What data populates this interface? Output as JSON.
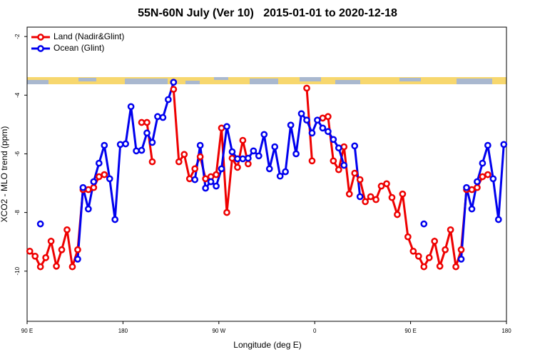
{
  "chart_data": {
    "type": "line",
    "title": "55N-60N July (Ver 10)   2015-01-01 to 2020-12-18",
    "xlabel": "Longitude (deg E)",
    "ylabel": "XCO2 - MLO trend (ppm)",
    "xlim": [
      90,
      540
    ],
    "ylim": [
      -11.71,
      -1.68
    ],
    "xticks": [
      {
        "value": 90,
        "label": "90 E"
      },
      {
        "value": 180,
        "label": "180"
      },
      {
        "value": 270,
        "label": "90 W"
      },
      {
        "value": 360,
        "label": "0"
      },
      {
        "value": 450,
        "label": "90 E"
      },
      {
        "value": 540,
        "label": "180"
      }
    ],
    "yticks": [
      -2,
      -4,
      -6,
      -8,
      -10
    ],
    "legend": "upper left",
    "x": [
      92.5,
      97.5,
      102.5,
      107.5,
      112.5,
      117.5,
      122.5,
      127.5,
      132.5,
      137.5,
      142.5,
      147.5,
      152.5,
      157.5,
      162.5,
      167.5,
      172.5,
      177.5,
      182.5,
      187.5,
      192.5,
      197.5,
      202.5,
      207.5,
      212.5,
      217.5,
      222.5,
      227.5,
      232.5,
      237.5,
      242.5,
      247.5,
      252.5,
      257.5,
      262.5,
      267.5,
      272.5,
      277.5,
      282.5,
      287.5,
      292.5,
      297.5,
      302.5,
      307.5,
      312.5,
      317.5,
      322.5,
      327.5,
      332.5,
      337.5,
      342.5,
      347.5,
      352.5,
      357.5,
      362.5,
      367.5,
      372.5,
      377.5,
      382.5,
      387.5,
      392.5,
      397.5,
      402.5,
      407.5,
      412.5,
      417.5,
      422.5,
      427.5,
      432.5,
      437.5,
      442.5,
      447.5,
      452.5,
      457.5,
      462.5,
      467.5,
      472.5,
      477.5,
      482.5,
      487.5,
      492.5,
      497.5,
      502.5,
      507.5,
      512.5,
      517.5,
      522.5,
      527.5,
      532.5,
      537.5
    ],
    "series": [
      {
        "name": "Land (Nadir&Glint)",
        "color": "#ee0000",
        "values": [
          -9.32,
          -9.49,
          -9.85,
          -9.54,
          -8.98,
          -9.83,
          -9.27,
          -8.59,
          -9.85,
          -9.27,
          -7.22,
          -7.22,
          -7.15,
          -6.78,
          -6.71,
          null,
          null,
          null,
          null,
          null,
          null,
          -4.93,
          -4.93,
          -6.27,
          null,
          null,
          null,
          -3.8,
          -6.27,
          -6.02,
          -6.85,
          -6.51,
          -6.1,
          -6.85,
          -6.78,
          -6.71,
          -5.12,
          -8.0,
          -6.15,
          -6.46,
          -5.54,
          -6.34,
          null,
          null,
          null,
          null,
          null,
          null,
          null,
          null,
          null,
          null,
          -3.76,
          -6.24,
          null,
          -4.78,
          -4.73,
          -6.24,
          -6.54,
          -5.76,
          -7.37,
          -6.66,
          -6.88,
          -7.63,
          -7.46,
          -7.56,
          -7.1,
          -7.02,
          -7.49,
          -8.07,
          -7.37,
          -8.83,
          -9.32,
          -9.49,
          -9.85,
          -9.54,
          -8.98,
          -9.83,
          -9.27,
          -8.59,
          -9.85,
          -9.27,
          -7.22,
          -7.22,
          -7.15,
          -6.78,
          -6.71,
          null,
          null,
          null
        ]
      },
      {
        "name": "Ocean (Glint)",
        "color": "#0000ee",
        "values": [
          null,
          null,
          -8.39,
          null,
          null,
          null,
          null,
          null,
          null,
          -9.59,
          -7.15,
          -7.88,
          -6.95,
          -6.32,
          -5.71,
          -6.85,
          -8.24,
          -5.68,
          -5.66,
          -4.39,
          -5.9,
          -5.88,
          -5.29,
          -5.61,
          -4.73,
          -4.76,
          -4.15,
          -3.56,
          null,
          null,
          null,
          -6.88,
          -5.71,
          -7.17,
          -6.95,
          -7.1,
          -6.51,
          -5.07,
          -5.93,
          -6.17,
          -6.17,
          -6.15,
          -5.9,
          -6.07,
          -5.34,
          -6.51,
          -5.76,
          -6.76,
          -6.61,
          -5.02,
          -6.0,
          -4.63,
          -4.85,
          -5.29,
          -4.85,
          -5.12,
          -5.24,
          -5.51,
          -5.8,
          -6.39,
          null,
          -5.73,
          -7.46,
          null,
          null,
          null,
          null,
          null,
          null,
          null,
          null,
          null,
          null,
          null,
          -8.39,
          null,
          null,
          null,
          null,
          null,
          null,
          -9.59,
          -7.15,
          -7.88,
          -6.95,
          -6.32,
          -5.71,
          -6.85,
          -8.24,
          -5.68
        ]
      }
    ]
  }
}
